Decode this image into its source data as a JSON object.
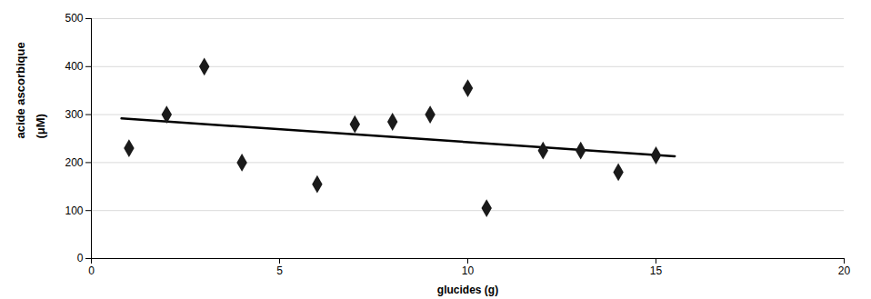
{
  "chart_data": {
    "type": "scatter",
    "xlabel": "glucides (g)",
    "ylabel": [
      "acide ascorbique",
      "(μM)"
    ],
    "x": [
      1.0,
      2.0,
      3.0,
      4.0,
      6.0,
      7.0,
      8.0,
      9.0,
      10.0,
      10.5,
      12.0,
      13.0,
      14.0,
      15.0
    ],
    "values": [
      230,
      300,
      400,
      200,
      155,
      280,
      285,
      300,
      355,
      105,
      225,
      225,
      180,
      215
    ],
    "color": "#1a1a1a",
    "marker": "diamond",
    "trendline": {
      "x": [
        0.8,
        15.5
      ],
      "values": [
        292,
        213
      ],
      "color": "#000000"
    },
    "xlim": [
      0,
      20
    ],
    "xticks": [
      0,
      5,
      10,
      15,
      20
    ],
    "ylim": [
      0,
      500
    ],
    "yticks": [
      0,
      100,
      200,
      300,
      400,
      500
    ],
    "grid": true
  }
}
